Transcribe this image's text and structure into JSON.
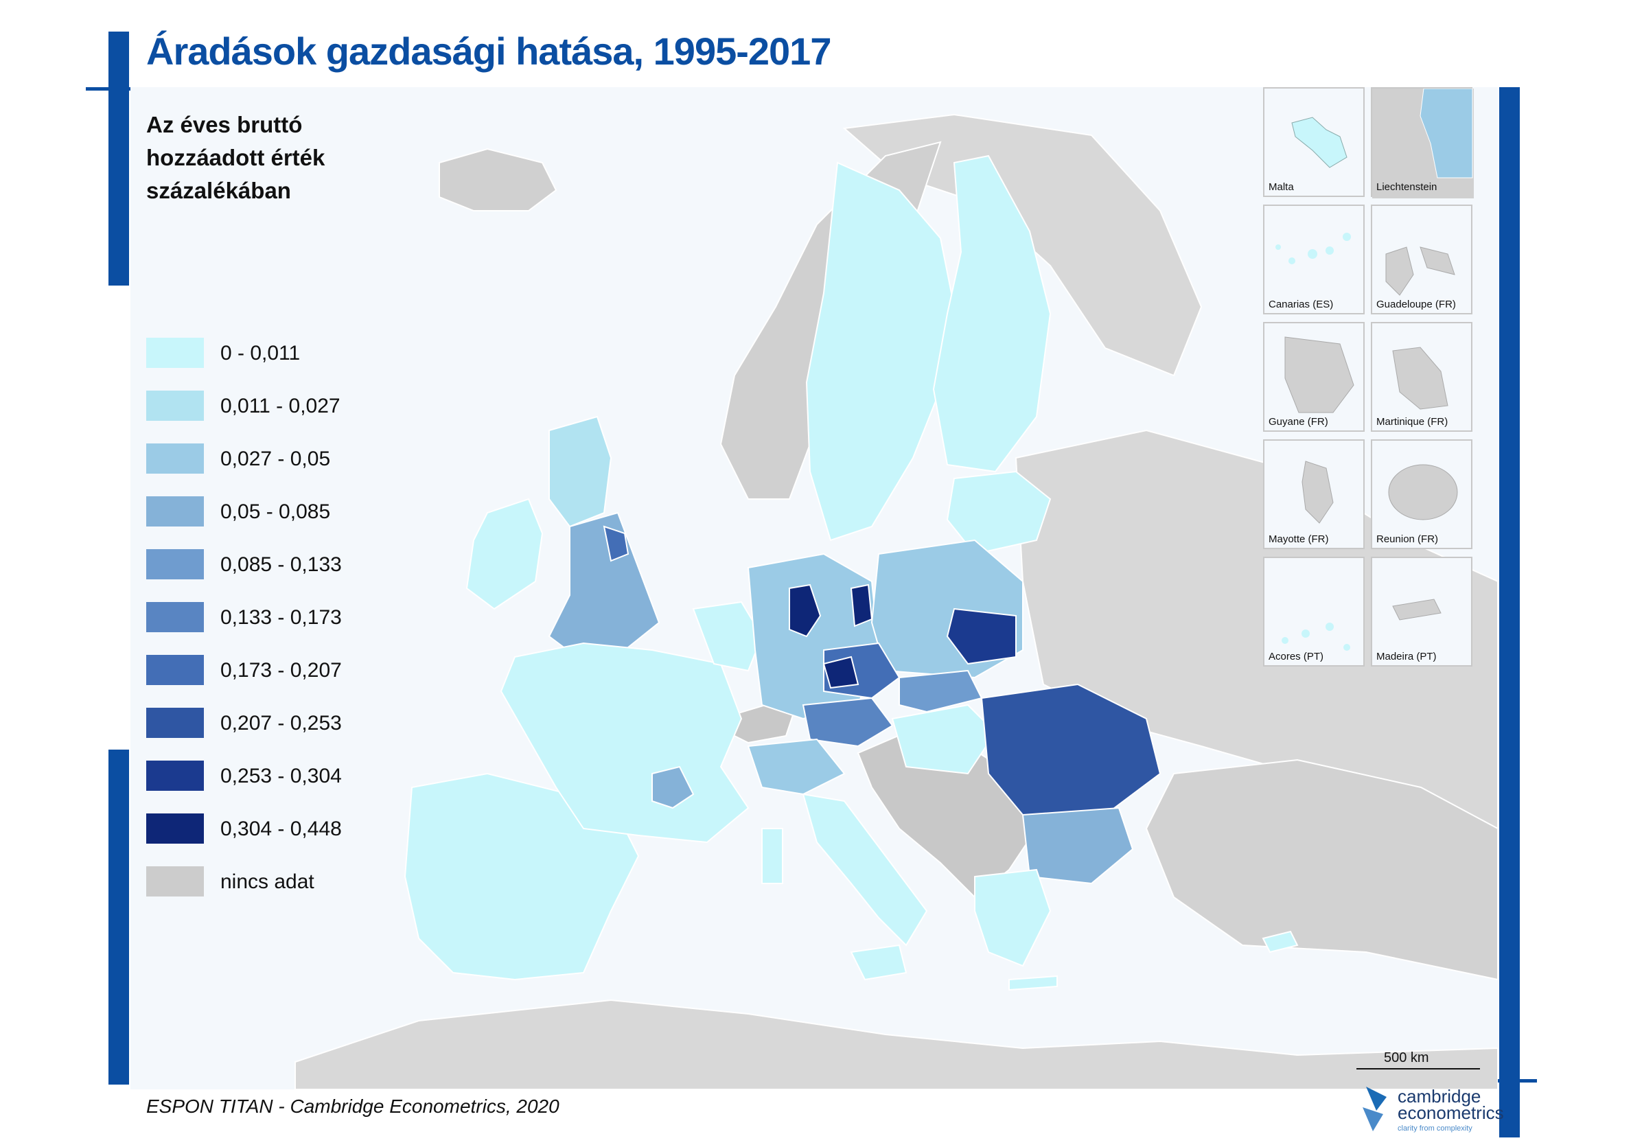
{
  "title": "Áradások gazdasági hatása, 1995-2017",
  "subtitle_lines": [
    "Az éves bruttó",
    "hozzáadott érték",
    "százalékában"
  ],
  "legend": [
    {
      "label": "0  -  0,011",
      "color": "#c8f6fb"
    },
    {
      "label": "0,011  -  0,027",
      "color": "#b1e3f1"
    },
    {
      "label": "0,027  -  0,05",
      "color": "#9bcbe6"
    },
    {
      "label": "0,05  -  0,085",
      "color": "#85b2d8"
    },
    {
      "label": "0,085  -  0,133",
      "color": "#6f9ccf"
    },
    {
      "label": "0,133  -  0,173",
      "color": "#5985c2"
    },
    {
      "label": "0,173  -  0,207",
      "color": "#436eb6"
    },
    {
      "label": "0,207  -  0,253",
      "color": "#2f56a3"
    },
    {
      "label": "0,253  -  0,304",
      "color": "#1b3a8f"
    },
    {
      "label": "0,304  -  0,448",
      "color": "#0e2677"
    },
    {
      "label": "nincs adat",
      "color": "#cccccc"
    }
  ],
  "insets": [
    "Malta",
    "Liechtenstein",
    "Canarias (ES)",
    "Guadeloupe (FR)",
    "Guyane (FR)",
    "Martinique (FR)",
    "Mayotte (FR)",
    "Reunion (FR)",
    "Acores (PT)",
    "Madeira (PT)"
  ],
  "scale_label": "500 km",
  "source": "ESPON TITAN - Cambridge Econometrics, 2020",
  "logo": {
    "line1": "cambridge",
    "line2": "econometrics",
    "tagline": "clarity from complexity"
  },
  "colors": {
    "accent": "#0b4ea2",
    "no_data": "#cccccc",
    "sea": "#f4f8fc",
    "land_outside": "#d8d8d8"
  }
}
